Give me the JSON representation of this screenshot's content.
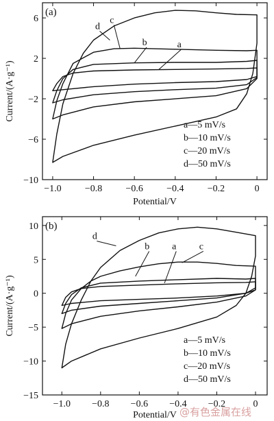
{
  "watermark": "@有色金属在线",
  "chart_data": [
    {
      "type": "line",
      "panel_label": "(a)",
      "xlabel": "Potential/V",
      "ylabel": "Current/(A·g⁻¹)",
      "xlim": [
        -1.05,
        0.05
      ],
      "ylim": [
        -10,
        7.5
      ],
      "x_ticks": [
        -1.0,
        -0.8,
        -0.6,
        -0.4,
        -0.2,
        0
      ],
      "x_tick_labels": [
        "−1.0",
        "−0.8",
        "−0.6",
        "−0.4",
        "−0.2",
        "0"
      ],
      "y_ticks": [
        -10,
        -6,
        -2,
        2,
        6
      ],
      "y_tick_labels": [
        "−10",
        "−6",
        "−2",
        "2",
        "6"
      ],
      "legend": {
        "position": "bottom-right",
        "entries": [
          "a—5 mV/s",
          "b—10 mV/s",
          "c—20 mV/s",
          "d—50 mV/s"
        ]
      },
      "series": [
        {
          "name": "a",
          "label_at": [
            -0.38,
            3.1
          ],
          "leader_to": [
            -0.48,
            0.9
          ],
          "upper": [
            [
              -1.0,
              -1.2
            ],
            [
              -0.98,
              -0.5
            ],
            [
              -0.95,
              0.2
            ],
            [
              -0.9,
              0.55
            ],
            [
              -0.8,
              0.75
            ],
            [
              -0.6,
              0.85
            ],
            [
              -0.4,
              0.9
            ],
            [
              -0.2,
              0.95
            ],
            [
              -0.05,
              1.0
            ],
            [
              0,
              1.05
            ]
          ],
          "lower": [
            [
              0,
              0.2
            ],
            [
              -0.05,
              -0.1
            ],
            [
              -0.2,
              -0.3
            ],
            [
              -0.4,
              -0.4
            ],
            [
              -0.6,
              -0.55
            ],
            [
              -0.8,
              -0.8
            ],
            [
              -0.95,
              -1.1
            ],
            [
              -1.0,
              -1.2
            ]
          ]
        },
        {
          "name": "b",
          "label_at": [
            -0.55,
            3.3
          ],
          "leader_to": [
            -0.6,
            1.55
          ],
          "upper": [
            [
              -1.0,
              -2.4
            ],
            [
              -0.98,
              -1.2
            ],
            [
              -0.95,
              0.0
            ],
            [
              -0.9,
              0.9
            ],
            [
              -0.8,
              1.4
            ],
            [
              -0.6,
              1.55
            ],
            [
              -0.4,
              1.6
            ],
            [
              -0.2,
              1.6
            ],
            [
              -0.05,
              1.7
            ],
            [
              0,
              1.8
            ]
          ],
          "lower": [
            [
              0,
              0.1
            ],
            [
              -0.05,
              -0.6
            ],
            [
              -0.2,
              -0.95
            ],
            [
              -0.4,
              -1.1
            ],
            [
              -0.6,
              -1.3
            ],
            [
              -0.8,
              -1.6
            ],
            [
              -0.95,
              -2.1
            ],
            [
              -1.0,
              -2.4
            ]
          ]
        },
        {
          "name": "c",
          "label_at": [
            -0.71,
            5.5
          ],
          "leader_to": [
            -0.67,
            2.95
          ],
          "upper": [
            [
              -1.0,
              -4.0
            ],
            [
              -0.98,
              -2.2
            ],
            [
              -0.95,
              -0.5
            ],
            [
              -0.9,
              1.5
            ],
            [
              -0.8,
              2.6
            ],
            [
              -0.7,
              2.95
            ],
            [
              -0.6,
              3.0
            ],
            [
              -0.4,
              2.9
            ],
            [
              -0.2,
              2.8
            ],
            [
              -0.05,
              2.75
            ],
            [
              0,
              2.8
            ]
          ],
          "lower": [
            [
              0,
              0.0
            ],
            [
              -0.05,
              -1.0
            ],
            [
              -0.2,
              -1.7
            ],
            [
              -0.4,
              -2.0
            ],
            [
              -0.6,
              -2.3
            ],
            [
              -0.8,
              -2.8
            ],
            [
              -0.95,
              -3.6
            ],
            [
              -1.0,
              -4.0
            ]
          ]
        },
        {
          "name": "d",
          "label_at": [
            -0.78,
            4.9
          ],
          "leader_to": [
            -0.72,
            3.8
          ],
          "upper": [
            [
              -1.0,
              -8.3
            ],
            [
              -0.98,
              -5.5
            ],
            [
              -0.95,
              -2.5
            ],
            [
              -0.9,
              0.5
            ],
            [
              -0.85,
              2.5
            ],
            [
              -0.8,
              3.8
            ],
            [
              -0.7,
              5.2
            ],
            [
              -0.6,
              6.0
            ],
            [
              -0.5,
              6.5
            ],
            [
              -0.4,
              6.75
            ],
            [
              -0.3,
              6.7
            ],
            [
              -0.2,
              6.5
            ],
            [
              -0.1,
              6.35
            ],
            [
              0,
              6.3
            ],
            [
              0,
              3.5
            ]
          ],
          "lower": [
            [
              0,
              3.5
            ],
            [
              -0.02,
              0.5
            ],
            [
              -0.05,
              -1.5
            ],
            [
              -0.1,
              -3.0
            ],
            [
              -0.2,
              -3.8
            ],
            [
              -0.4,
              -4.7
            ],
            [
              -0.6,
              -5.6
            ],
            [
              -0.8,
              -6.6
            ],
            [
              -0.95,
              -7.7
            ],
            [
              -1.0,
              -8.3
            ]
          ]
        }
      ]
    },
    {
      "type": "line",
      "panel_label": "(b)",
      "xlabel": "Potential/V",
      "ylabel": "Current/(A·g⁻¹)",
      "xlim": [
        -1.1,
        0.06
      ],
      "ylim": [
        -15,
        11.3
      ],
      "x_ticks": [
        -1.0,
        -0.8,
        -0.6,
        -0.4,
        -0.2,
        0
      ],
      "x_tick_labels": [
        "−1.0",
        "−0.8",
        "−0.6",
        "−0.4",
        "−0.2",
        "0"
      ],
      "y_ticks": [
        -15,
        -10,
        -5,
        0,
        5,
        10
      ],
      "y_tick_labels": [
        "−15",
        "−10",
        "−5",
        "0",
        "5",
        "10"
      ],
      "legend": {
        "position": "bottom-right",
        "entries": [
          "a—5 mV/s",
          "b—10 mV/s",
          "c—20 mV/s",
          "d—50 mV/s"
        ]
      },
      "series": [
        {
          "name": "a",
          "label_at": [
            -0.42,
            6.5
          ],
          "leader_to": [
            -0.47,
            1.5
          ],
          "upper": [
            [
              -1.0,
              -1.8
            ],
            [
              -0.98,
              -0.6
            ],
            [
              -0.95,
              0.2
            ],
            [
              -0.9,
              0.7
            ],
            [
              -0.8,
              1.0
            ],
            [
              -0.6,
              1.2
            ],
            [
              -0.4,
              1.4
            ],
            [
              -0.2,
              1.55
            ],
            [
              -0.05,
              1.6
            ],
            [
              0,
              1.7
            ]
          ],
          "lower": [
            [
              0,
              0.5
            ],
            [
              -0.05,
              0.0
            ],
            [
              -0.2,
              -0.4
            ],
            [
              -0.4,
              -0.7
            ],
            [
              -0.6,
              -0.9
            ],
            [
              -0.8,
              -1.1
            ],
            [
              -0.95,
              -1.5
            ],
            [
              -1.0,
              -1.8
            ]
          ]
        },
        {
          "name": "b",
          "label_at": [
            -0.56,
            6.5
          ],
          "leader_to": [
            -0.62,
            2.5
          ],
          "upper": [
            [
              -1.0,
              -3.0
            ],
            [
              -0.98,
              -1.5
            ],
            [
              -0.95,
              -0.2
            ],
            [
              -0.9,
              0.8
            ],
            [
              -0.8,
              1.5
            ],
            [
              -0.6,
              1.8
            ],
            [
              -0.4,
              2.0
            ],
            [
              -0.2,
              2.2
            ],
            [
              -0.05,
              2.1
            ],
            [
              0,
              2.2
            ]
          ],
          "lower": [
            [
              0,
              0.8
            ],
            [
              -0.05,
              0.0
            ],
            [
              -0.2,
              -0.7
            ],
            [
              -0.4,
              -1.1
            ],
            [
              -0.6,
              -1.5
            ],
            [
              -0.8,
              -1.9
            ],
            [
              -0.95,
              -2.5
            ],
            [
              -1.0,
              -3.0
            ]
          ]
        },
        {
          "name": "c",
          "label_at": [
            -0.28,
            6.5
          ],
          "leader_to": [
            -0.38,
            4.5
          ],
          "upper": [
            [
              -1.0,
              -5.2
            ],
            [
              -0.98,
              -3.0
            ],
            [
              -0.95,
              -1.0
            ],
            [
              -0.9,
              0.7
            ],
            [
              -0.85,
              1.8
            ],
            [
              -0.8,
              2.5
            ],
            [
              -0.7,
              3.3
            ],
            [
              -0.6,
              3.9
            ],
            [
              -0.5,
              4.35
            ],
            [
              -0.4,
              4.6
            ],
            [
              -0.3,
              4.6
            ],
            [
              -0.2,
              4.4
            ],
            [
              -0.1,
              4.1
            ],
            [
              0,
              4.0
            ]
          ],
          "lower": [
            [
              0,
              0.5
            ],
            [
              -0.05,
              -0.4
            ],
            [
              -0.2,
              -1.3
            ],
            [
              -0.4,
              -2.0
            ],
            [
              -0.6,
              -2.6
            ],
            [
              -0.8,
              -3.4
            ],
            [
              -0.95,
              -4.5
            ],
            [
              -1.0,
              -5.2
            ]
          ]
        },
        {
          "name": "d",
          "label_at": [
            -0.83,
            8.0
          ],
          "leader_to": [
            -0.72,
            7.0
          ],
          "upper": [
            [
              -1.0,
              -11.0
            ],
            [
              -0.98,
              -7.5
            ],
            [
              -0.95,
              -4.5
            ],
            [
              -0.9,
              -1.0
            ],
            [
              -0.85,
              1.8
            ],
            [
              -0.8,
              3.8
            ],
            [
              -0.7,
              6.3
            ],
            [
              -0.6,
              7.8
            ],
            [
              -0.5,
              8.9
            ],
            [
              -0.4,
              9.5
            ],
            [
              -0.3,
              9.75
            ],
            [
              -0.2,
              9.5
            ],
            [
              -0.1,
              9.0
            ],
            [
              0,
              8.5
            ],
            [
              0,
              5.5
            ]
          ],
          "lower": [
            [
              0,
              5.5
            ],
            [
              -0.02,
              2.5
            ],
            [
              -0.05,
              0.0
            ],
            [
              -0.1,
              -1.8
            ],
            [
              -0.2,
              -3.5
            ],
            [
              -0.4,
              -5.2
            ],
            [
              -0.6,
              -6.6
            ],
            [
              -0.8,
              -8.2
            ],
            [
              -0.95,
              -10.0
            ],
            [
              -1.0,
              -11.0
            ]
          ]
        }
      ]
    }
  ]
}
